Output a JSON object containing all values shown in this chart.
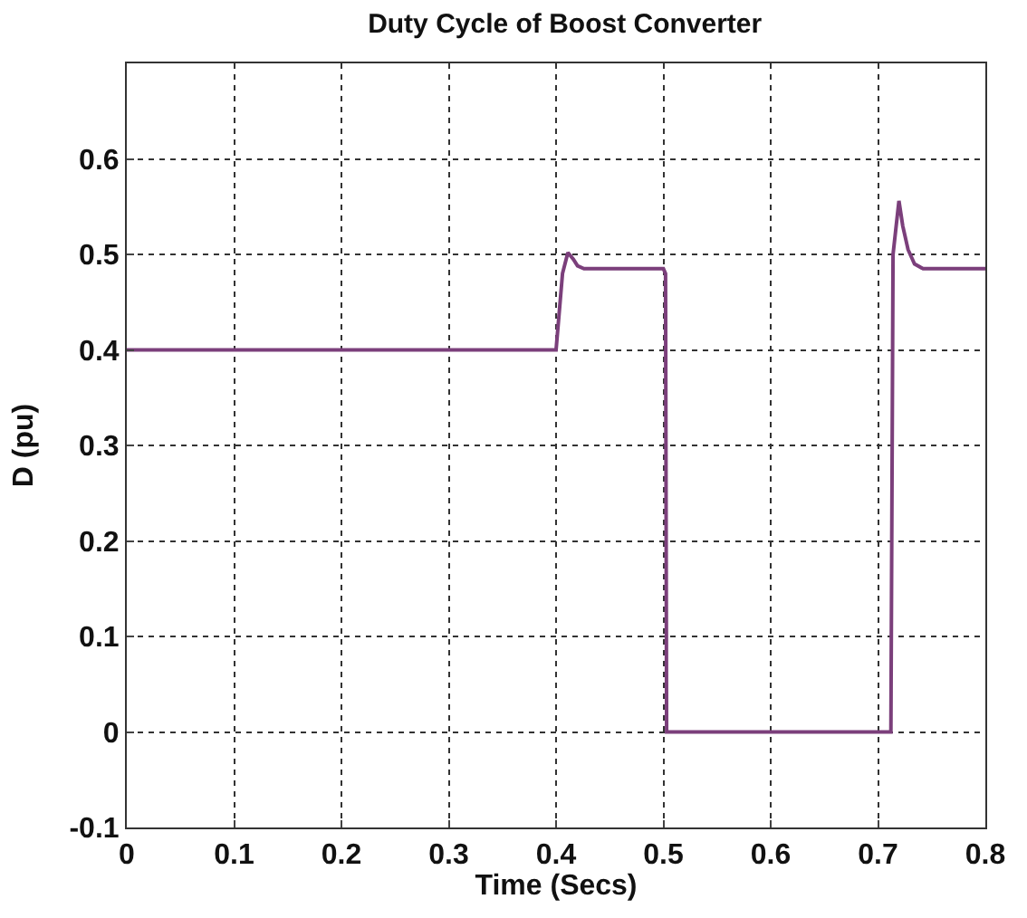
{
  "chart_data": {
    "type": "line",
    "title": "Duty Cycle of Boost Converter",
    "xlabel": "Time (Secs)",
    "ylabel": "D (pu)",
    "series": [
      {
        "color": "#7b3f7b",
        "x": [
          0,
          0.4,
          0.403,
          0.406,
          0.411,
          0.416,
          0.42,
          0.426,
          0.5,
          0.502,
          0.503,
          0.705,
          0.712,
          0.714,
          0.7195,
          0.723,
          0.728,
          0.734,
          0.742,
          0.8
        ],
        "values": [
          0.4,
          0.4,
          0.44,
          0.48,
          0.502,
          0.495,
          0.488,
          0.485,
          0.485,
          0.48,
          0,
          0,
          0,
          0.5,
          0.556,
          0.53,
          0.505,
          0.49,
          0.485,
          0.485
        ]
      }
    ],
    "xlim": [
      0,
      0.8
    ],
    "xticks": [
      0,
      0.1,
      0.2,
      0.3,
      0.4,
      0.5,
      0.6,
      0.7,
      0.8
    ],
    "ylim": [
      -0.1,
      0.7
    ],
    "yticks": [
      -0.1,
      0,
      0.1,
      0.2,
      0.3,
      0.4,
      0.5,
      0.6
    ],
    "grid": true,
    "marker": "none",
    "line_style": "solid"
  }
}
